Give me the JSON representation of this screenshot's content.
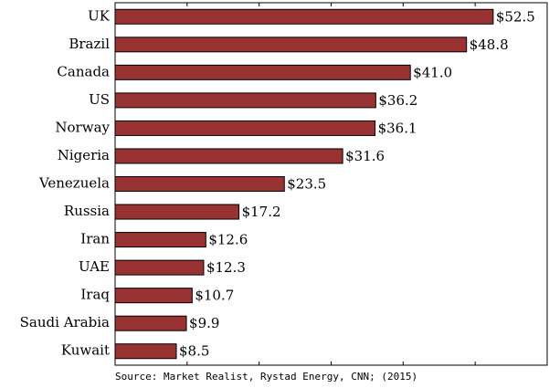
{
  "chart_data": {
    "type": "barh",
    "categories": [
      "UK",
      "Brazil",
      "Canada",
      "US",
      "Norway",
      "Nigeria",
      "Venezuela",
      "Russia",
      "Iran",
      "UAE",
      "Iraq",
      "Saudi Arabia",
      "Kuwait"
    ],
    "values": [
      52.5,
      48.8,
      41.0,
      36.2,
      36.1,
      31.6,
      23.5,
      17.2,
      12.6,
      12.3,
      10.7,
      9.9,
      8.5
    ],
    "value_labels": [
      "$52.5",
      "$48.8",
      "$41.0",
      "$36.2",
      "$36.1",
      "$31.6",
      "$23.5",
      "$17.2",
      "$12.6",
      "$12.3",
      "$10.7",
      "$9.9",
      "$8.5"
    ],
    "color": "#993333",
    "xlim": [
      0,
      60
    ],
    "xticks": [
      0,
      10,
      20,
      30,
      40,
      50,
      60
    ],
    "source": "Source: Market Realist, Rystad Energy, CNN; (2015)"
  }
}
